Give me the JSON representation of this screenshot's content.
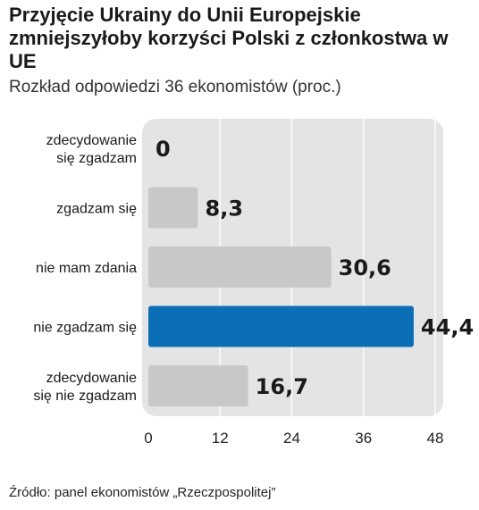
{
  "chart_data": {
    "type": "bar",
    "orientation": "horizontal",
    "title": "Przyjęcie Ukrainy do Unii Europejskie zmniejszyłoby korzyści Polski z członkostwa w UE",
    "subtitle": "Rozkład odpowiedzi 36 ekonomistów (proc.)",
    "categories": [
      [
        "zdecydowanie",
        "się zgadzam"
      ],
      [
        "zgadzam się"
      ],
      [
        "nie mam zdania"
      ],
      [
        "nie zgadzam się"
      ],
      [
        "zdecydowanie",
        "się nie zgadzam"
      ]
    ],
    "values": [
      0,
      8.3,
      30.6,
      44.4,
      16.7
    ],
    "value_labels": [
      "0",
      "8,3",
      "30,6",
      "44,4",
      "16,7"
    ],
    "highlight_index": 3,
    "xlim": [
      0,
      48
    ],
    "xticks": [
      0,
      12,
      24,
      36,
      48
    ],
    "xlabel": "",
    "ylabel": "",
    "grid": true,
    "colors": {
      "bar": "#c8c8c8",
      "highlight": "#0a6fb7",
      "panel": "#e4e4e4",
      "grid": "#ffffff"
    }
  },
  "source": "Źródło: panel ekonomistów „Rzeczpospolitej”"
}
